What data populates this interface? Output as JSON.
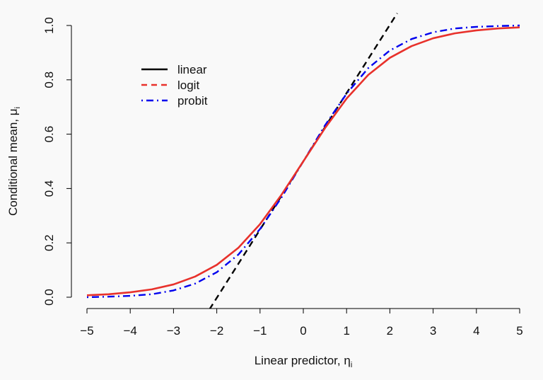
{
  "chart_data": {
    "type": "line",
    "xlabel": "Linear predictor, ",
    "xlabel_symbol": "η",
    "xlabel_subscript": "i",
    "ylabel": "Conditional mean, ",
    "ylabel_symbol": "μ",
    "ylabel_subscript": "i",
    "xlim": [
      -5,
      5
    ],
    "ylim": [
      0,
      1
    ],
    "x_ticks": [
      -5,
      -4,
      -3,
      -2,
      -1,
      0,
      1,
      2,
      3,
      4,
      5
    ],
    "x_tick_labels": [
      "−5",
      "−4",
      "−3",
      "−2",
      "−1",
      "0",
      "1",
      "2",
      "3",
      "4",
      "5"
    ],
    "y_ticks": [
      0,
      0.2,
      0.4,
      0.6,
      0.8,
      1.0
    ],
    "y_tick_labels": [
      "0.0",
      "0.2",
      "0.4",
      "0.6",
      "0.8",
      "1.0"
    ],
    "grid": false,
    "legend_position": "top-left",
    "series": [
      {
        "name": "linear",
        "color": "#000000",
        "dash": "dashed",
        "x": [
          -2.17,
          2.17
        ],
        "y": [
          -0.045,
          1.045
        ]
      },
      {
        "name": "logit",
        "color": "#e8312b",
        "dash": "dashed",
        "x": [
          -5.0,
          -4.5,
          -4.0,
          -3.5,
          -3.0,
          -2.5,
          -2.0,
          -1.5,
          -1.0,
          -0.5,
          0.0,
          0.5,
          1.0,
          1.5,
          2.0,
          2.5,
          3.0,
          3.5,
          4.0,
          4.5,
          5.0
        ],
        "y": [
          0.007,
          0.011,
          0.018,
          0.029,
          0.047,
          0.076,
          0.119,
          0.182,
          0.269,
          0.378,
          0.5,
          0.622,
          0.731,
          0.818,
          0.881,
          0.924,
          0.953,
          0.971,
          0.982,
          0.989,
          0.993
        ]
      },
      {
        "name": "probit",
        "color": "#0000ee",
        "dash": "dotdash",
        "x": [
          -5.0,
          -4.5,
          -4.0,
          -3.5,
          -3.0,
          -2.5,
          -2.0,
          -1.5,
          -1.0,
          -0.5,
          0.0,
          0.5,
          1.0,
          1.5,
          2.0,
          2.5,
          3.0,
          3.5,
          4.0,
          4.5,
          5.0
        ],
        "y": [
          0.0,
          0.002,
          0.005,
          0.011,
          0.025,
          0.05,
          0.092,
          0.157,
          0.251,
          0.368,
          0.5,
          0.632,
          0.749,
          0.843,
          0.908,
          0.95,
          0.975,
          0.989,
          0.995,
          0.998,
          1.0
        ]
      }
    ]
  },
  "render": {
    "logit_solid_color": "#e8312b"
  }
}
